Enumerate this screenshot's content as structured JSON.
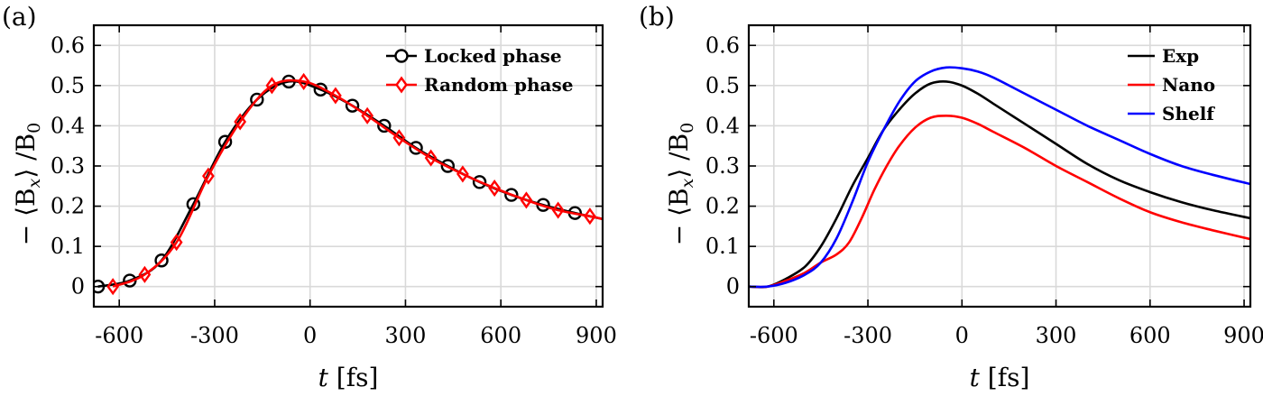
{
  "chart_data": [
    {
      "panel": "(a)",
      "type": "line",
      "xlabel_var": "t",
      "xlabel_unit": "[fs]",
      "ylabel": "− ⟨B",
      "ylabel_sub": "x",
      "ylabel_tail": "⟩ /B",
      "ylabel_tail_sub": "0",
      "xlim": [
        -680,
        920
      ],
      "ylim": [
        -0.05,
        0.65
      ],
      "xticks": [
        -600,
        -300,
        0,
        300,
        600,
        900
      ],
      "xtick_labels": [
        "-600",
        "-300",
        "0",
        "300",
        "600",
        "900"
      ],
      "yticks": [
        0,
        0.1,
        0.2,
        0.3,
        0.4,
        0.5,
        0.6
      ],
      "ytick_labels": [
        "0",
        "0.1",
        "0.2",
        "0.3",
        "0.4",
        "0.5",
        "0.6"
      ],
      "grid": true,
      "legend_position": "top-right",
      "series": [
        {
          "name": "Locked phase",
          "color": "#000000",
          "marker": "circle",
          "x": [
            -667,
            -567,
            -467,
            -367,
            -267,
            -167,
            -67,
            33,
            133,
            233,
            333,
            433,
            533,
            633,
            733,
            833,
            920
          ],
          "y": [
            0.0,
            0.015,
            0.065,
            0.205,
            0.36,
            0.465,
            0.51,
            0.49,
            0.45,
            0.4,
            0.345,
            0.3,
            0.26,
            0.228,
            0.203,
            0.183,
            0.168
          ]
        },
        {
          "name": "Random phase",
          "color": "#ff0000",
          "marker": "diamond",
          "x": [
            -620,
            -520,
            -420,
            -320,
            -220,
            -120,
            -20,
            80,
            180,
            280,
            380,
            480,
            580,
            680,
            780,
            880,
            920
          ],
          "y": [
            0.0,
            0.03,
            0.11,
            0.275,
            0.41,
            0.5,
            0.51,
            0.475,
            0.425,
            0.37,
            0.32,
            0.28,
            0.245,
            0.215,
            0.19,
            0.175,
            0.168
          ]
        }
      ]
    },
    {
      "panel": "(b)",
      "type": "line",
      "xlabel_var": "t",
      "xlabel_unit": "[fs]",
      "ylabel": "− ⟨B",
      "ylabel_sub": "x",
      "ylabel_tail": "⟩ /B",
      "ylabel_tail_sub": "0",
      "xlim": [
        -680,
        920
      ],
      "ylim": [
        -0.05,
        0.65
      ],
      "xticks": [
        -600,
        -300,
        0,
        300,
        600,
        900
      ],
      "xtick_labels": [
        "-600",
        "-300",
        "0",
        "300",
        "600",
        "900"
      ],
      "yticks": [
        0,
        0.1,
        0.2,
        0.3,
        0.4,
        0.5,
        0.6
      ],
      "ytick_labels": [
        "0",
        "0.1",
        "0.2",
        "0.3",
        "0.4",
        "0.5",
        "0.6"
      ],
      "grid": true,
      "legend_position": "top-right",
      "series": [
        {
          "name": "Exp",
          "color": "#000000",
          "x": [
            -680,
            -620,
            -560,
            -500,
            -450,
            -400,
            -350,
            -300,
            -250,
            -200,
            -150,
            -100,
            -50,
            0,
            50,
            100,
            150,
            200,
            300,
            400,
            500,
            600,
            700,
            800,
            920
          ],
          "y": [
            0.0,
            0.0,
            0.02,
            0.05,
            0.1,
            0.17,
            0.25,
            0.32,
            0.39,
            0.44,
            0.48,
            0.505,
            0.51,
            0.5,
            0.48,
            0.455,
            0.43,
            0.405,
            0.355,
            0.305,
            0.265,
            0.235,
            0.21,
            0.19,
            0.17
          ]
        },
        {
          "name": "Nano",
          "color": "#ff0000",
          "x": [
            -680,
            -620,
            -560,
            -500,
            -450,
            -400,
            -360,
            -320,
            -280,
            -240,
            -200,
            -150,
            -100,
            -50,
            0,
            50,
            100,
            200,
            300,
            400,
            500,
            600,
            700,
            800,
            920
          ],
          "y": [
            0.0,
            0.0,
            0.015,
            0.035,
            0.06,
            0.08,
            0.11,
            0.17,
            0.24,
            0.3,
            0.35,
            0.395,
            0.42,
            0.425,
            0.42,
            0.405,
            0.385,
            0.345,
            0.3,
            0.26,
            0.22,
            0.185,
            0.16,
            0.14,
            0.118
          ]
        },
        {
          "name": "Shelf",
          "color": "#0000ff",
          "x": [
            -680,
            -620,
            -560,
            -500,
            -450,
            -400,
            -350,
            -300,
            -250,
            -200,
            -150,
            -100,
            -50,
            0,
            50,
            100,
            200,
            300,
            400,
            500,
            600,
            700,
            800,
            920
          ],
          "y": [
            0.0,
            0.0,
            0.01,
            0.03,
            0.06,
            0.12,
            0.21,
            0.31,
            0.39,
            0.46,
            0.51,
            0.535,
            0.545,
            0.543,
            0.535,
            0.52,
            0.48,
            0.44,
            0.4,
            0.365,
            0.33,
            0.3,
            0.278,
            0.255
          ]
        }
      ]
    }
  ]
}
